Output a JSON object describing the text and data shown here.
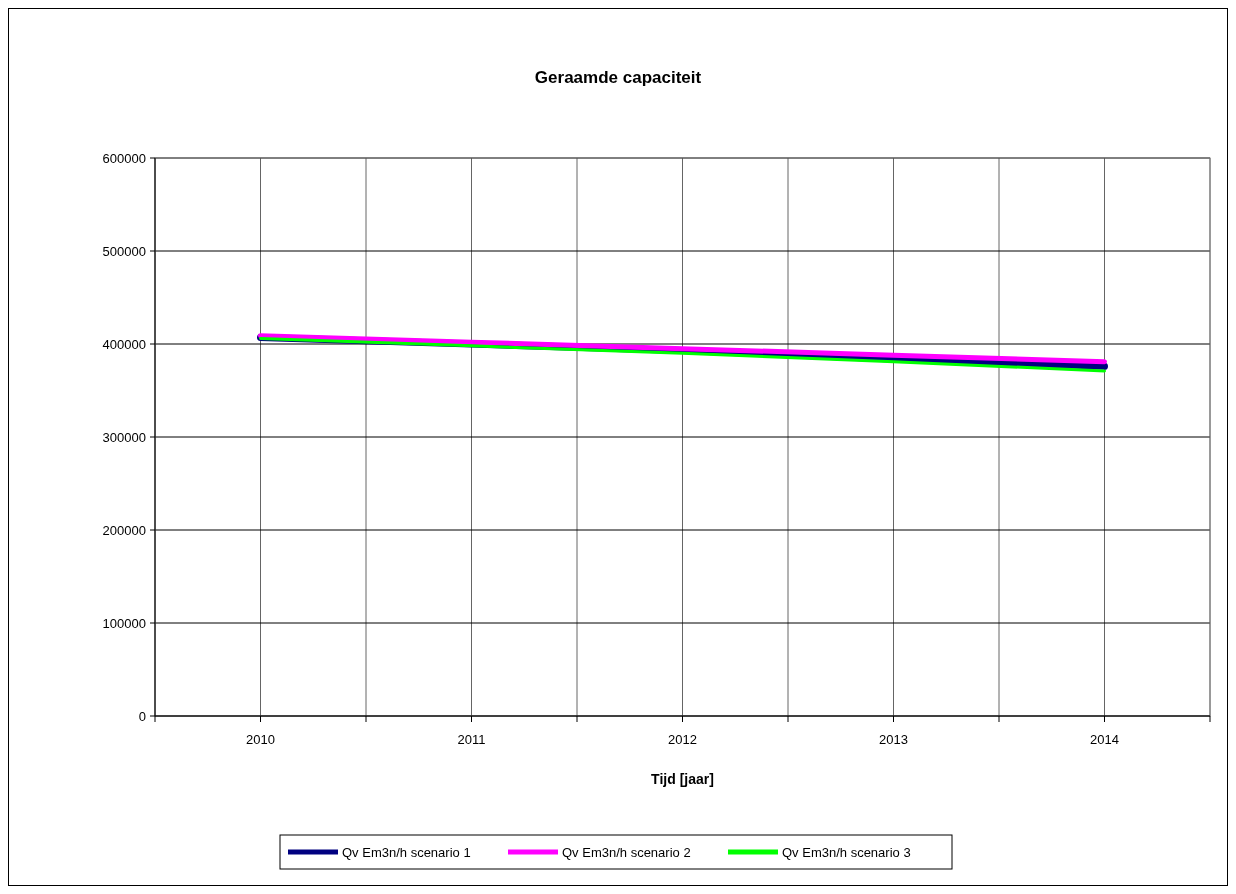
{
  "chart_data": {
    "type": "line",
    "title": "Geraamde capaciteit",
    "xlabel": "Tijd [jaar]",
    "x": [
      2010,
      2011,
      2012,
      2013,
      2014
    ],
    "xlim": [
      2009.5,
      2014.5
    ],
    "xticks": [
      {
        "value": 2009.5,
        "label": null
      },
      2010,
      {
        "value": 2010.5,
        "label": null
      },
      2011,
      {
        "value": 2011.5,
        "label": null
      },
      2012,
      {
        "value": 2012.5,
        "label": null
      },
      2013,
      {
        "value": 2013.5,
        "label": null
      },
      2014,
      {
        "value": 2014.5,
        "label": null
      }
    ],
    "ylim": [
      0,
      600000
    ],
    "yticks": [
      0,
      100000,
      200000,
      300000,
      400000,
      500000,
      600000
    ],
    "grid": true,
    "legend": "bottom",
    "marker": "none",
    "line_style": "solid",
    "series": [
      {
        "name": "Qv Em3n/h scenario 1",
        "color": "#000080",
        "values": [
          407000,
          400000,
          393000,
          384000,
          376000
        ]
      },
      {
        "name": "Qv Em3n/h scenario 2",
        "color": "#ff00ff",
        "values": [
          409000,
          402000,
          395000,
          388000,
          381000
        ]
      },
      {
        "name": "Qv Em3n/h scenario 3",
        "color": "#00ff00",
        "values": [
          406000,
          398000,
          390000,
          381000,
          371000
        ]
      }
    ]
  }
}
